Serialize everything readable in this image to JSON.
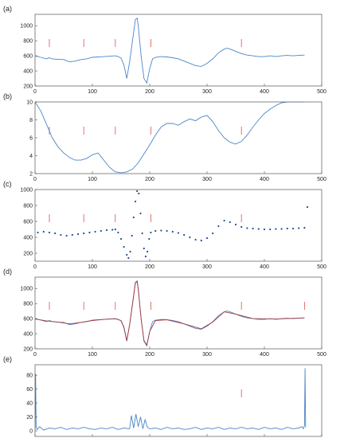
{
  "chart_data": [
    {
      "panel": "(a)",
      "type": "line",
      "xlim": [
        0,
        500
      ],
      "ylim": [
        200,
        1150
      ],
      "xticks": [
        "0",
        "100",
        "200",
        "300",
        "400",
        "500"
      ],
      "yticks": [
        "200",
        "400",
        "600",
        "800",
        "1000"
      ],
      "markers_x": [
        25,
        85,
        140,
        202,
        360
      ],
      "series": [
        {
          "color": "#4a86c8",
          "x": [
            0,
            10,
            20,
            25,
            30,
            40,
            50,
            60,
            70,
            80,
            90,
            100,
            110,
            120,
            130,
            140,
            145,
            150,
            155,
            160,
            165,
            170,
            175,
            178,
            180,
            185,
            190,
            195,
            200,
            205,
            210,
            220,
            230,
            240,
            250,
            260,
            270,
            280,
            290,
            300,
            310,
            320,
            330,
            335,
            340,
            350,
            360,
            370,
            380,
            390,
            400,
            410,
            420,
            430,
            440,
            450,
            460,
            470
          ],
          "y": [
            600,
            580,
            560,
            575,
            560,
            555,
            550,
            520,
            530,
            550,
            560,
            580,
            585,
            590,
            595,
            600,
            590,
            570,
            480,
            300,
            520,
            800,
            1080,
            1100,
            1000,
            600,
            300,
            240,
            430,
            560,
            580,
            590,
            585,
            575,
            560,
            530,
            500,
            470,
            460,
            500,
            560,
            640,
            690,
            700,
            690,
            660,
            630,
            610,
            600,
            590,
            590,
            600,
            590,
            600,
            605,
            600,
            605,
            610
          ]
        }
      ]
    },
    {
      "panel": "(b)",
      "type": "line",
      "xlim": [
        0,
        500
      ],
      "ylim": [
        2,
        10
      ],
      "xticks": [
        "0",
        "100",
        "200",
        "300",
        "400",
        "500"
      ],
      "yticks": [
        "2",
        "4",
        "6",
        "8",
        "10"
      ],
      "markers_x": [
        25,
        85,
        140,
        202,
        360
      ],
      "series": [
        {
          "color": "#4a86c8",
          "x": [
            0,
            10,
            20,
            30,
            40,
            50,
            60,
            70,
            80,
            90,
            100,
            110,
            120,
            130,
            140,
            150,
            160,
            170,
            180,
            190,
            200,
            210,
            220,
            230,
            240,
            250,
            260,
            270,
            280,
            290,
            300,
            310,
            320,
            330,
            340,
            350,
            360,
            370,
            380,
            390,
            400,
            410,
            420,
            430,
            440,
            450,
            460,
            470
          ],
          "y": [
            10,
            9,
            7.5,
            6,
            5,
            4.3,
            3.8,
            3.5,
            3.5,
            3.7,
            4.1,
            4.3,
            3.5,
            2.7,
            2.2,
            2.1,
            2.2,
            2.5,
            3.2,
            4.2,
            5.2,
            6.3,
            7.2,
            7.6,
            7.6,
            7.4,
            7.8,
            8.1,
            7.9,
            8.3,
            8.5,
            7.8,
            6.8,
            6,
            5.5,
            5.3,
            5.6,
            6.3,
            7.2,
            8,
            8.7,
            9.2,
            9.6,
            9.9,
            10,
            10,
            10,
            10
          ]
        }
      ]
    },
    {
      "panel": "(c)",
      "type": "scatter",
      "xlim": [
        0,
        500
      ],
      "ylim": [
        100,
        1000
      ],
      "xticks": [
        "0",
        "100",
        "200",
        "300",
        "400",
        "500"
      ],
      "yticks": [
        "200",
        "400",
        "600",
        "800",
        "1000"
      ],
      "markers_x": [
        25,
        85,
        140,
        202,
        360
      ],
      "series": [
        {
          "color": "#1f4e96",
          "x": [
            5,
            15,
            25,
            35,
            45,
            55,
            65,
            75,
            85,
            95,
            105,
            115,
            125,
            135,
            140,
            145,
            150,
            155,
            160,
            163,
            166,
            169,
            172,
            175,
            178,
            181,
            184,
            187,
            190,
            193,
            196,
            199,
            202,
            210,
            220,
            230,
            240,
            250,
            260,
            270,
            280,
            290,
            300,
            310,
            320,
            330,
            340,
            350,
            360,
            370,
            380,
            390,
            400,
            410,
            420,
            430,
            440,
            450,
            460,
            470,
            475
          ],
          "y": [
            460,
            470,
            460,
            450,
            430,
            420,
            430,
            440,
            450,
            460,
            470,
            480,
            490,
            495,
            500,
            460,
            380,
            280,
            180,
            140,
            220,
            420,
            650,
            850,
            980,
            950,
            700,
            450,
            260,
            160,
            220,
            380,
            460,
            480,
            485,
            480,
            470,
            455,
            430,
            400,
            370,
            360,
            390,
            450,
            540,
            610,
            590,
            560,
            530,
            515,
            510,
            505,
            500,
            500,
            505,
            505,
            510,
            510,
            515,
            520,
            780
          ]
        }
      ]
    },
    {
      "panel": "(d)",
      "type": "line",
      "xlim": [
        0,
        500
      ],
      "ylim": [
        200,
        1150
      ],
      "xticks": [
        "0",
        "100",
        "200",
        "300",
        "400",
        "500"
      ],
      "yticks": [
        "200",
        "400",
        "600",
        "800",
        "1000"
      ],
      "markers_x": [
        25,
        85,
        140,
        202,
        360,
        470
      ],
      "series": [
        {
          "color": "#4a86c8",
          "x": [
            0,
            10,
            20,
            25,
            30,
            40,
            50,
            60,
            70,
            80,
            90,
            100,
            110,
            120,
            130,
            140,
            145,
            150,
            155,
            160,
            165,
            170,
            175,
            178,
            180,
            185,
            190,
            195,
            200,
            205,
            210,
            220,
            230,
            240,
            250,
            260,
            270,
            280,
            290,
            300,
            310,
            320,
            330,
            335,
            340,
            350,
            360,
            370,
            380,
            390,
            400,
            410,
            420,
            430,
            440,
            450,
            460,
            470
          ],
          "y": [
            600,
            580,
            560,
            575,
            560,
            555,
            550,
            520,
            530,
            550,
            560,
            580,
            585,
            590,
            595,
            600,
            590,
            570,
            480,
            300,
            520,
            800,
            1080,
            1100,
            1000,
            600,
            300,
            240,
            430,
            560,
            580,
            590,
            585,
            575,
            560,
            530,
            500,
            470,
            460,
            500,
            560,
            640,
            690,
            700,
            690,
            660,
            630,
            610,
            600,
            590,
            590,
            600,
            590,
            600,
            605,
            600,
            605,
            610
          ]
        },
        {
          "color": "#a83a3a",
          "x": [
            0,
            20,
            40,
            60,
            80,
            100,
            120,
            140,
            150,
            155,
            160,
            165,
            170,
            175,
            178,
            180,
            185,
            190,
            195,
            200,
            210,
            230,
            260,
            290,
            310,
            330,
            350,
            380,
            420,
            470
          ],
          "y": [
            595,
            570,
            555,
            530,
            550,
            575,
            590,
            598,
            575,
            490,
            310,
            520,
            790,
            1070,
            1095,
            990,
            600,
            310,
            250,
            430,
            575,
            585,
            530,
            465,
            555,
            690,
            660,
            600,
            595,
            610
          ]
        }
      ]
    },
    {
      "panel": "(e)",
      "type": "line",
      "xlim": [
        0,
        500
      ],
      "ylim": [
        -8,
        95
      ],
      "xticks": [
        "0",
        "100",
        "200",
        "300",
        "400",
        "500"
      ],
      "yticks": [
        "0",
        "20",
        "40",
        "60",
        "80"
      ],
      "markers_x": [
        360
      ],
      "series": [
        {
          "color": "#4a86c8",
          "x": [
            0,
            1,
            2,
            4,
            8,
            15,
            25,
            35,
            45,
            55,
            65,
            75,
            85,
            95,
            105,
            115,
            125,
            135,
            145,
            155,
            165,
            168,
            172,
            176,
            180,
            184,
            188,
            192,
            196,
            200,
            210,
            220,
            230,
            240,
            250,
            260,
            270,
            280,
            290,
            300,
            310,
            320,
            330,
            340,
            350,
            360,
            370,
            380,
            390,
            400,
            410,
            420,
            430,
            440,
            450,
            460,
            465,
            468,
            470,
            471,
            472
          ],
          "y": [
            0,
            82,
            5,
            2,
            6,
            1,
            4,
            3,
            5,
            2,
            4,
            3,
            5,
            3,
            2,
            4,
            3,
            5,
            2,
            4,
            3,
            22,
            4,
            24,
            6,
            20,
            3,
            16,
            5,
            3,
            4,
            2,
            5,
            3,
            4,
            2,
            3,
            5,
            2,
            4,
            3,
            5,
            2,
            4,
            3,
            5,
            3,
            4,
            2,
            5,
            3,
            4,
            2,
            5,
            3,
            4,
            6,
            3,
            8,
            90,
            5
          ]
        }
      ]
    }
  ]
}
